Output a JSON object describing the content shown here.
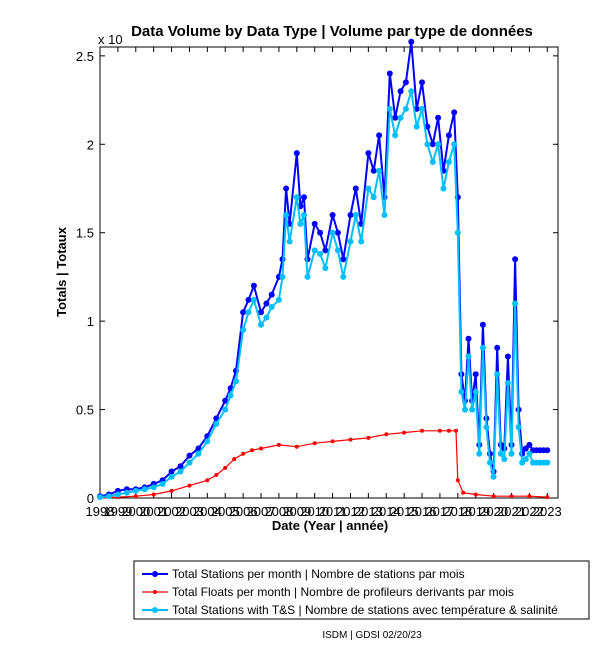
{
  "chart_data": {
    "type": "line",
    "title": "Data Volume by Data Type | Volume par type de données",
    "xlabel": "Date (Year | année)",
    "ylabel": "Totals | Totaux",
    "y_multiplier": "x 10",
    "xlim": [
      1998,
      2023.6
    ],
    "ylim": [
      0,
      2.55
    ],
    "y_ticks": [
      "0",
      "0.5",
      "1",
      "1.5",
      "2",
      "2.5"
    ],
    "x_ticks": [
      "1998",
      "1999",
      "2000",
      "2001",
      "2002",
      "2003",
      "2004",
      "2005",
      "2006",
      "2007",
      "2008",
      "2009",
      "2010",
      "2011",
      "2012",
      "2013",
      "2014",
      "2015",
      "2016",
      "2017",
      "2018",
      "2019",
      "2020",
      "2021",
      "2022",
      "2023"
    ],
    "grid": false,
    "legend_position": "bottom",
    "series": [
      {
        "name": "Total Stations per month | Nombre de stations par mois",
        "color": "#0000ff",
        "marker": "circle",
        "x": [
          1998.0,
          1998.5,
          1999.0,
          1999.5,
          2000.0,
          2000.5,
          2001.0,
          2001.5,
          2002.0,
          2002.5,
          2003.0,
          2003.5,
          2004.0,
          2004.5,
          2005.0,
          2005.3,
          2005.6,
          2006.0,
          2006.3,
          2006.6,
          2007.0,
          2007.3,
          2007.6,
          2008.0,
          2008.2,
          2008.4,
          2008.6,
          2009.0,
          2009.2,
          2009.4,
          2009.6,
          2010.0,
          2010.3,
          2010.6,
          2011.0,
          2011.3,
          2011.6,
          2012.0,
          2012.3,
          2012.6,
          2013.0,
          2013.3,
          2013.6,
          2013.9,
          2014.2,
          2014.5,
          2014.8,
          2015.1,
          2015.4,
          2015.7,
          2016.0,
          2016.3,
          2016.6,
          2016.9,
          2017.2,
          2017.5,
          2017.8,
          2018.0,
          2018.2,
          2018.4,
          2018.6,
          2018.8,
          2019.0,
          2019.2,
          2019.4,
          2019.6,
          2019.8,
          2020.0,
          2020.2,
          2020.4,
          2020.6,
          2020.8,
          2021.0,
          2021.2,
          2021.4,
          2021.6,
          2021.8,
          2022.0,
          2022.2,
          2022.4,
          2022.6,
          2022.8,
          2023.0
        ],
        "values": [
          0.01,
          0.02,
          0.04,
          0.05,
          0.05,
          0.06,
          0.08,
          0.1,
          0.15,
          0.18,
          0.24,
          0.28,
          0.35,
          0.45,
          0.55,
          0.62,
          0.72,
          1.05,
          1.12,
          1.2,
          1.05,
          1.1,
          1.15,
          1.25,
          1.35,
          1.75,
          1.55,
          1.95,
          1.65,
          1.7,
          1.35,
          1.55,
          1.5,
          1.4,
          1.6,
          1.5,
          1.35,
          1.6,
          1.75,
          1.55,
          1.95,
          1.85,
          2.05,
          1.7,
          2.4,
          2.15,
          2.3,
          2.35,
          2.58,
          2.2,
          2.35,
          2.1,
          2.0,
          2.15,
          1.85,
          2.05,
          2.18,
          1.7,
          0.7,
          0.55,
          0.9,
          0.55,
          0.7,
          0.3,
          0.98,
          0.45,
          0.25,
          0.15,
          0.85,
          0.3,
          0.28,
          0.8,
          0.3,
          1.35,
          0.5,
          0.25,
          0.28,
          0.3,
          0.27,
          0.27,
          0.27,
          0.27,
          0.27
        ]
      },
      {
        "name": "Total Floats per month | Nombre de profileurs derivants par mois",
        "color": "#ff0000",
        "marker": "dot",
        "x": [
          1998.0,
          1999.0,
          2000.0,
          2001.0,
          2002.0,
          2003.0,
          2004.0,
          2004.5,
          2005.0,
          2005.5,
          2006.0,
          2006.5,
          2007.0,
          2008.0,
          2009.0,
          2010.0,
          2011.0,
          2012.0,
          2013.0,
          2014.0,
          2015.0,
          2016.0,
          2017.0,
          2017.5,
          2017.9,
          2018.0,
          2018.3,
          2019.0,
          2020.0,
          2021.0,
          2022.0,
          2023.0
        ],
        "values": [
          0.0,
          0.005,
          0.01,
          0.02,
          0.04,
          0.07,
          0.1,
          0.13,
          0.17,
          0.22,
          0.25,
          0.27,
          0.28,
          0.3,
          0.29,
          0.31,
          0.32,
          0.33,
          0.34,
          0.36,
          0.37,
          0.38,
          0.38,
          0.38,
          0.38,
          0.1,
          0.03,
          0.02,
          0.01,
          0.01,
          0.01,
          0.005
        ]
      },
      {
        "name": "Total Stations with T&S | Nombre de stations avec température & salinité",
        "color": "#00bfff",
        "marker": "circle",
        "x": [
          1998.0,
          1998.5,
          1999.0,
          1999.5,
          2000.0,
          2000.5,
          2001.0,
          2001.5,
          2002.0,
          2002.5,
          2003.0,
          2003.5,
          2004.0,
          2004.5,
          2005.0,
          2005.3,
          2005.6,
          2006.0,
          2006.3,
          2006.6,
          2007.0,
          2007.3,
          2007.6,
          2008.0,
          2008.2,
          2008.4,
          2008.6,
          2009.0,
          2009.2,
          2009.4,
          2009.6,
          2010.0,
          2010.3,
          2010.6,
          2011.0,
          2011.3,
          2011.6,
          2012.0,
          2012.3,
          2012.6,
          2013.0,
          2013.3,
          2013.6,
          2013.9,
          2014.2,
          2014.5,
          2014.8,
          2015.1,
          2015.4,
          2015.7,
          2016.0,
          2016.3,
          2016.6,
          2016.9,
          2017.2,
          2017.5,
          2017.8,
          2018.0,
          2018.2,
          2018.4,
          2018.6,
          2018.8,
          2019.0,
          2019.2,
          2019.4,
          2019.6,
          2019.8,
          2020.0,
          2020.2,
          2020.4,
          2020.6,
          2020.8,
          2021.0,
          2021.2,
          2021.4,
          2021.6,
          2021.8,
          2022.0,
          2022.2,
          2022.4,
          2022.6,
          2022.8,
          2023.0
        ],
        "values": [
          0.005,
          0.01,
          0.02,
          0.03,
          0.04,
          0.05,
          0.06,
          0.08,
          0.12,
          0.15,
          0.2,
          0.25,
          0.32,
          0.42,
          0.5,
          0.58,
          0.66,
          0.95,
          1.05,
          1.12,
          0.98,
          1.02,
          1.08,
          1.12,
          1.25,
          1.6,
          1.45,
          1.7,
          1.55,
          1.6,
          1.25,
          1.4,
          1.38,
          1.3,
          1.5,
          1.4,
          1.25,
          1.45,
          1.6,
          1.45,
          1.75,
          1.7,
          1.85,
          1.6,
          2.2,
          2.05,
          2.15,
          2.2,
          2.3,
          2.1,
          2.2,
          2.0,
          1.9,
          2.0,
          1.75,
          1.9,
          2.0,
          1.5,
          0.6,
          0.5,
          0.8,
          0.5,
          0.6,
          0.25,
          0.85,
          0.4,
          0.2,
          0.12,
          0.7,
          0.25,
          0.22,
          0.65,
          0.25,
          1.1,
          0.4,
          0.2,
          0.22,
          0.25,
          0.2,
          0.2,
          0.2,
          0.2,
          0.2
        ]
      }
    ]
  },
  "footer": "ISDM | GDSI 02/20/23"
}
